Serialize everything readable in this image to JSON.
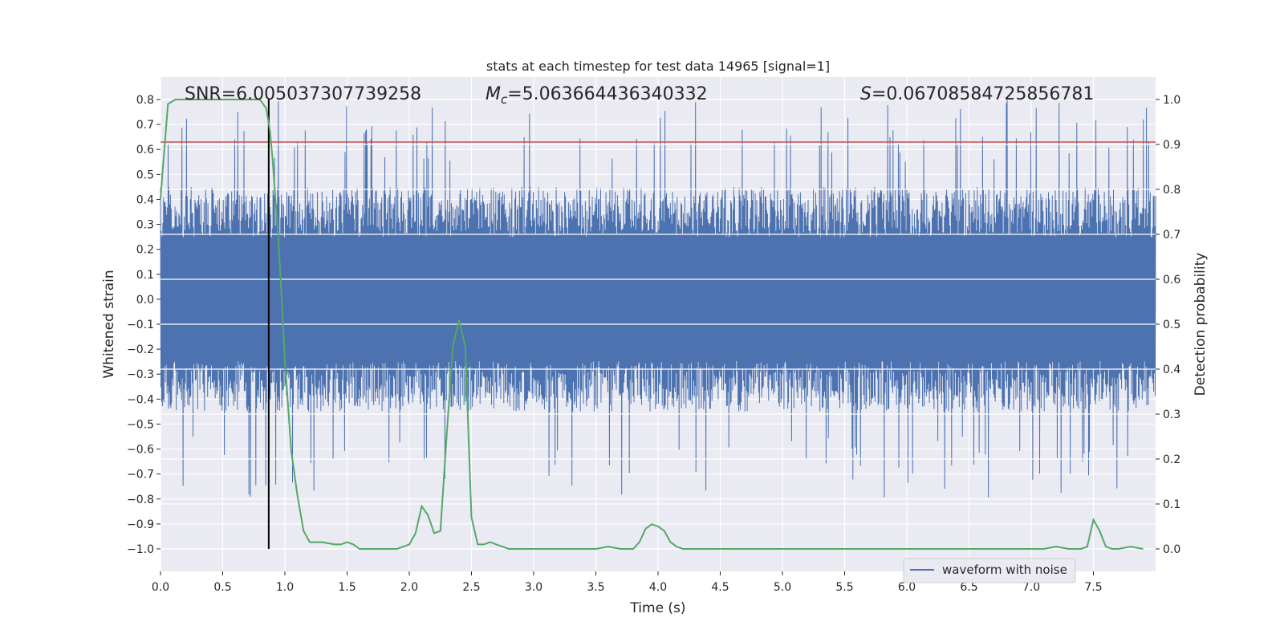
{
  "chart_data": {
    "type": "line",
    "title": "stats at each timestep for test data 14965 [signal=1]",
    "xlabel": "Time (s)",
    "ylabel": "Whitened strain",
    "ylabel_right": "Detection probability",
    "xlim": [
      0.0,
      8.0
    ],
    "ylim": [
      -1.09,
      0.89
    ],
    "ylim_right": [
      -0.05,
      1.05
    ],
    "x_ticks": [
      0.0,
      0.5,
      1.0,
      1.5,
      2.0,
      2.5,
      3.0,
      3.5,
      4.0,
      4.5,
      5.0,
      5.5,
      6.0,
      6.5,
      7.0,
      7.5
    ],
    "x_tick_labels": [
      "0.0",
      "0.5",
      "1.0",
      "1.5",
      "2.0",
      "2.5",
      "3.0",
      "3.5",
      "4.0",
      "4.5",
      "5.0",
      "5.5",
      "6.0",
      "6.5",
      "7.0",
      "7.5"
    ],
    "y_ticks": [
      0.8,
      0.7,
      0.6,
      0.5,
      0.4,
      0.3,
      0.2,
      0.1,
      0.0,
      -0.1,
      -0.2,
      -0.3,
      -0.4,
      -0.5,
      -0.6,
      -0.7,
      -0.8,
      -0.9,
      -1.0
    ],
    "y_tick_labels": [
      "0.8",
      "0.7",
      "0.6",
      "0.5",
      "0.4",
      "0.3",
      "0.2",
      "0.1",
      "0.0",
      "−0.1",
      "−0.2",
      "−0.3",
      "−0.4",
      "−0.5",
      "−0.6",
      "−0.7",
      "−0.8",
      "−0.9",
      "−1.0"
    ],
    "y_right_ticks": [
      1.0,
      0.9,
      0.8,
      0.7,
      0.6,
      0.5,
      0.4,
      0.3,
      0.2,
      0.1,
      0.0
    ],
    "y_right_tick_labels": [
      "1.0",
      "0.9",
      "0.8",
      "0.7",
      "0.6",
      "0.5",
      "0.4",
      "0.3",
      "0.2",
      "0.1",
      "0.0"
    ],
    "annotations": {
      "snr": "SNR=6.005037307739258",
      "mc": "=5.063664436340332",
      "s": "=0.06708584725856781"
    },
    "series": [
      {
        "name": "waveform with noise",
        "axis": "left",
        "color": "#4c72b0",
        "style": "dense noise, envelope approx ±0.45 with spikes to about ±0.8",
        "envelope": 0.45
      },
      {
        "name": "detection probability",
        "axis": "right",
        "color": "#55a868",
        "x": [
          0.0,
          0.06,
          0.12,
          0.2,
          0.3,
          0.4,
          0.5,
          0.6,
          0.7,
          0.8,
          0.85,
          0.88,
          0.9,
          0.95,
          1.0,
          1.05,
          1.1,
          1.15,
          1.2,
          1.3,
          1.4,
          1.45,
          1.5,
          1.55,
          1.6,
          1.7,
          1.8,
          1.9,
          1.95,
          2.0,
          2.05,
          2.1,
          2.15,
          2.2,
          2.25,
          2.3,
          2.35,
          2.4,
          2.45,
          2.5,
          2.55,
          2.6,
          2.65,
          2.7,
          2.75,
          2.8,
          2.9,
          3.0,
          3.1,
          3.2,
          3.3,
          3.4,
          3.5,
          3.6,
          3.7,
          3.8,
          3.85,
          3.9,
          3.95,
          4.0,
          4.05,
          4.1,
          4.15,
          4.2,
          4.3,
          4.5,
          5.0,
          5.5,
          6.0,
          6.5,
          7.0,
          7.1,
          7.2,
          7.3,
          7.4,
          7.45,
          7.5,
          7.55,
          7.6,
          7.65,
          7.7,
          7.8,
          7.9
        ],
        "values": [
          0.78,
          0.99,
          1.0,
          1.0,
          1.0,
          1.0,
          1.0,
          1.0,
          1.0,
          1.0,
          0.98,
          0.93,
          0.87,
          0.68,
          0.42,
          0.22,
          0.12,
          0.04,
          0.015,
          0.015,
          0.01,
          0.01,
          0.015,
          0.01,
          0.0,
          0.0,
          0.0,
          0.0,
          0.005,
          0.01,
          0.035,
          0.095,
          0.075,
          0.035,
          0.04,
          0.25,
          0.45,
          0.51,
          0.45,
          0.07,
          0.01,
          0.01,
          0.015,
          0.01,
          0.005,
          0.0,
          0.0,
          0.0,
          0.0,
          0.0,
          0.0,
          0.0,
          0.0,
          0.005,
          0.0,
          0.0,
          0.015,
          0.045,
          0.055,
          0.05,
          0.04,
          0.015,
          0.005,
          0.0,
          0.0,
          0.0,
          0.0,
          0.0,
          0.0,
          0.0,
          0.0,
          0.0,
          0.005,
          0.0,
          0.0,
          0.005,
          0.065,
          0.04,
          0.005,
          0.0,
          0.0,
          0.005,
          0.0
        ]
      }
    ],
    "threshold_line": {
      "value": 0.6296,
      "axis": "left",
      "color": "#c44e52"
    },
    "marker_line": {
      "x": 0.87,
      "color": "#000000"
    },
    "legend": {
      "position": "bottom-right",
      "entries": [
        "waveform with noise"
      ]
    },
    "grid": true,
    "background": "#eaeaf2"
  }
}
